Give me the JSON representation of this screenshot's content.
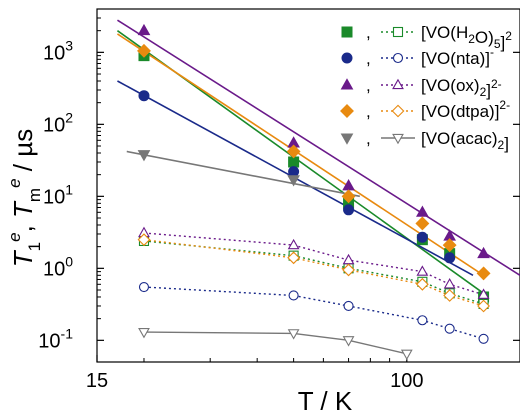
{
  "chart_data": {
    "type": "scatter",
    "x_scale": "log",
    "y_scale": "log",
    "xlim": [
      15,
      200
    ],
    "ylim": [
      0.05,
      4000
    ],
    "x_ticks": [
      {
        "value": 15,
        "label": "15"
      },
      {
        "value": 100,
        "label": "100"
      }
    ],
    "y_ticks": [
      {
        "value": 0.1,
        "base": "10",
        "exp": "-1"
      },
      {
        "value": 1,
        "base": "10",
        "exp": "0"
      },
      {
        "value": 10,
        "base": "10",
        "exp": "1"
      },
      {
        "value": 100,
        "base": "10",
        "exp": "2"
      },
      {
        "value": 1000,
        "base": "10",
        "exp": "3"
      }
    ],
    "xlabel": "T / K",
    "ylabel": {
      "t1": "T",
      "t1_sub": "1",
      "t1_sup": "e",
      "sep": ", ",
      "tm": "T",
      "tm_sub": "m",
      "tm_sup": "e",
      "unit": " / µs"
    },
    "legend_position": "top-right",
    "legend_separator": ",",
    "series": [
      {
        "name_parts": [
          {
            "t": "[VO(H"
          },
          {
            "t": "2",
            "s": "sub"
          },
          {
            "t": "O)"
          },
          {
            "t": "5",
            "s": "sub"
          },
          {
            "t": "]"
          },
          {
            "t": "2",
            "s": "sup"
          }
        ],
        "color": "#1a8a2a",
        "marker": "square",
        "T1": {
          "x": [
            20,
            50,
            70,
            110,
            130,
            160
          ],
          "y": [
            900,
            30,
            8,
            2.5,
            1.6,
            0.4
          ]
        },
        "T1_fit": {
          "x": [
            17,
            160
          ],
          "y": [
            2000,
            0.45
          ]
        },
        "Tm": {
          "x": [
            20,
            50,
            70,
            110,
            130,
            160
          ],
          "y": [
            2.4,
            1.5,
            1.0,
            0.65,
            0.45,
            0.32
          ]
        },
        "Tm_line": "dotted"
      },
      {
        "name_parts": [
          {
            "t": "[VO(nta)]"
          },
          {
            "t": "-",
            "s": "sup"
          }
        ],
        "color": "#1a2a8a",
        "marker": "circle",
        "T1": {
          "x": [
            20,
            50,
            70,
            110,
            130
          ],
          "y": [
            250,
            22,
            6.5,
            2.7,
            1.4
          ]
        },
        "T1_fit": {
          "x": [
            17,
            150
          ],
          "y": [
            400,
            0.8
          ]
        },
        "Tm": {
          "x": [
            20,
            50,
            70,
            110,
            130,
            160
          ],
          "y": [
            0.55,
            0.42,
            0.3,
            0.19,
            0.145,
            0.105
          ]
        },
        "Tm_line": "dotted"
      },
      {
        "name_parts": [
          {
            "t": "[VO(ox)"
          },
          {
            "t": "2",
            "s": "sub"
          },
          {
            "t": "]"
          },
          {
            "t": "2-",
            "s": "sup"
          }
        ],
        "color": "#6a1a8a",
        "marker": "triangle",
        "T1": {
          "x": [
            20,
            50,
            70,
            110,
            130,
            160
          ],
          "y": [
            2000,
            55,
            14,
            6,
            2.8,
            1.6
          ]
        },
        "T1_fit": {
          "x": [
            17,
            200
          ],
          "y": [
            2800,
            0.8
          ]
        },
        "Tm": {
          "x": [
            20,
            50,
            70,
            110,
            130,
            160
          ],
          "y": [
            3.1,
            2.1,
            1.3,
            0.9,
            0.6,
            0.43
          ]
        },
        "Tm_line": "dotted"
      },
      {
        "name_parts": [
          {
            "t": "[VO(dtpa)]"
          },
          {
            "t": "2-",
            "s": "sup"
          }
        ],
        "color": "#e88a10",
        "marker": "diamond",
        "T1": {
          "x": [
            20,
            50,
            70,
            110,
            130,
            160
          ],
          "y": [
            1050,
            42,
            10,
            4.2,
            2.1,
            0.85
          ]
        },
        "T1_fit": {
          "x": [
            17,
            160
          ],
          "y": [
            1800,
            0.8
          ]
        },
        "Tm": {
          "x": [
            20,
            50,
            70,
            110,
            130,
            160
          ],
          "y": [
            2.5,
            1.4,
            0.95,
            0.6,
            0.42,
            0.3
          ]
        },
        "Tm_line": "dotted"
      },
      {
        "name_parts": [
          {
            "t": "[VO(acac)"
          },
          {
            "t": "2",
            "s": "sub"
          },
          {
            "t": "]"
          }
        ],
        "color": "#777777",
        "marker": "triangle-down",
        "T1": {
          "x": [
            20,
            50
          ],
          "y": [
            38,
            17
          ]
        },
        "T1_fit": {
          "x": [
            18,
            75
          ],
          "y": [
            42,
            10
          ]
        },
        "Tm": {
          "x": [
            20,
            50,
            70,
            100
          ],
          "y": [
            0.13,
            0.125,
            0.1,
            0.065
          ]
        },
        "Tm_line": "solid"
      }
    ]
  }
}
